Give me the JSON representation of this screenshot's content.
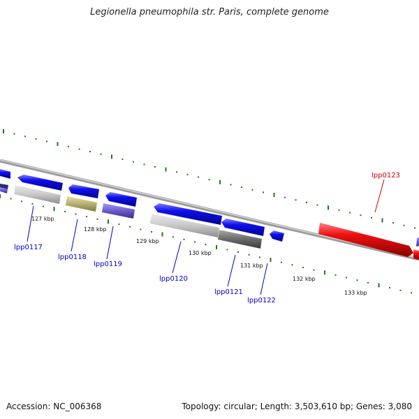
{
  "header": {
    "title": "Legionella pneumophila str. Paris, complete genome"
  },
  "footer": {
    "accession": "Accession: NC_006368",
    "summary": "Topology: circular; Length: 3,503,610 bp; Genes: 3,080"
  },
  "ticks": [
    "127 kbp",
    "128 kbp",
    "129 kbp",
    "130 kbp",
    "131 kbp",
    "132 kbp",
    "133 kbp"
  ],
  "genes": [
    {
      "id": "lpp0117",
      "label": "lpp0117",
      "color": "#0000cc"
    },
    {
      "id": "lpp0118",
      "label": "lpp0118",
      "color": "#0000cc"
    },
    {
      "id": "lpp0119",
      "label": "lpp0119",
      "color": "#0000cc"
    },
    {
      "id": "lpp0120",
      "label": "lpp0120",
      "color": "#0000cc"
    },
    {
      "id": "lpp0121",
      "label": "lpp0121",
      "color": "#0000cc"
    },
    {
      "id": "lpp0122",
      "label": "lpp0122",
      "color": "#0000cc"
    },
    {
      "id": "lpp0123",
      "label": "lpp0123",
      "color": "#cc0000"
    }
  ],
  "colors": {
    "forward_cds": "#1010ee",
    "highlight_cds": "#ee1010",
    "functional_grey": "#c8c8c8",
    "functional_olive": "#b8b070",
    "functional_purple": "#6a5acd",
    "functional_dark": "#6a6a6a",
    "backbone": "#8a8a8a",
    "tick_green": "#1a7a1a"
  }
}
